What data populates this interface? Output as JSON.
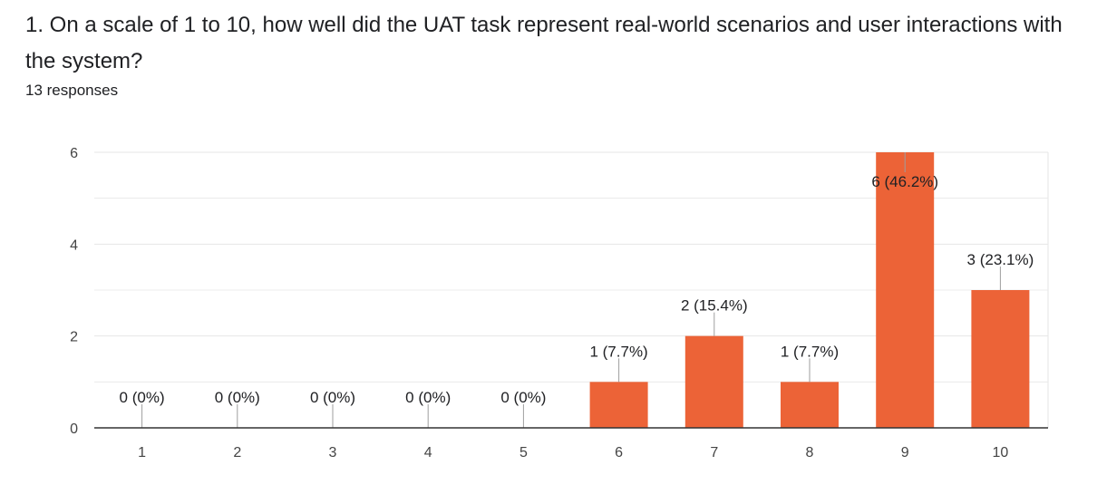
{
  "question": {
    "title": "1. On a scale of 1 to 10, how well did the UAT task represent real-world scenarios and user interactions with the system?",
    "responses": "13 responses"
  },
  "colors": {
    "bar": "#ec6337",
    "grid": "#e6e6e6",
    "axis": "#333333",
    "leader": "#9e9e9e"
  },
  "chart_data": {
    "type": "bar",
    "title": "",
    "xlabel": "",
    "ylabel": "",
    "categories": [
      "1",
      "2",
      "3",
      "4",
      "5",
      "6",
      "7",
      "8",
      "9",
      "10"
    ],
    "values": [
      0,
      0,
      0,
      0,
      0,
      1,
      2,
      1,
      6,
      3
    ],
    "data_labels": [
      "0 (0%)",
      "0 (0%)",
      "0 (0%)",
      "0 (0%)",
      "0 (0%)",
      "1 (7.7%)",
      "2 (15.4%)",
      "1 (7.7%)",
      "6 (46.2%)",
      "3 (23.1%)"
    ],
    "ylim": [
      0,
      6
    ],
    "yticks": [
      0,
      2,
      4,
      6
    ],
    "ytick_labels": [
      "0",
      "2",
      "4",
      "6"
    ],
    "grid": true
  }
}
